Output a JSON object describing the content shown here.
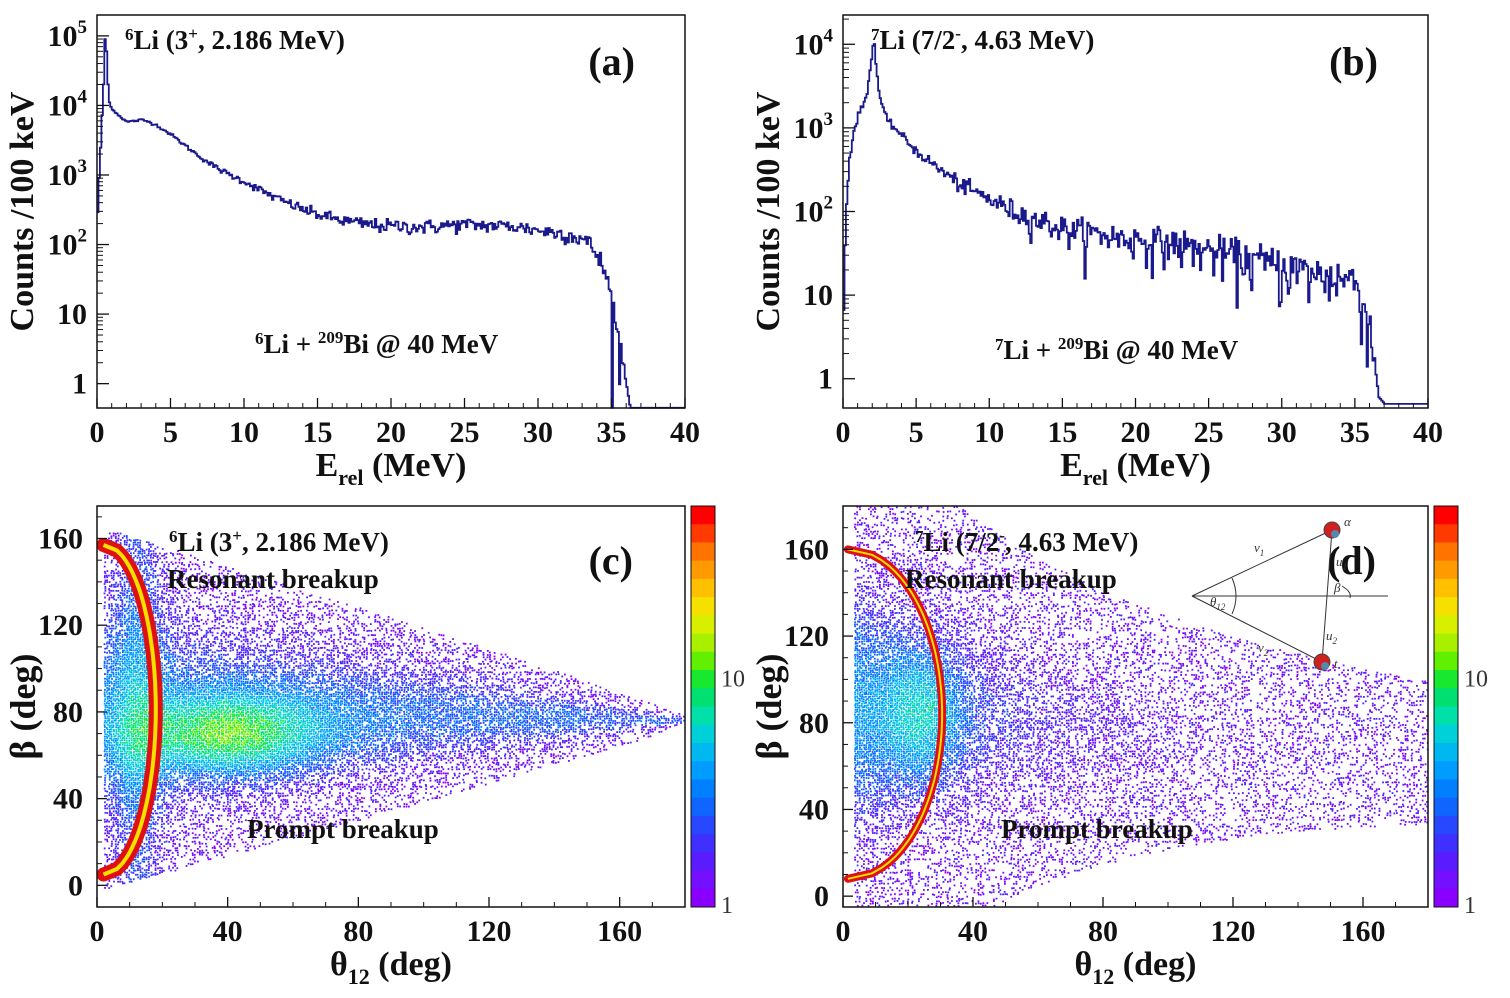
{
  "colors": {
    "histogram": "#1a1a8c",
    "axis": "#111111",
    "curve_outer": "#e01010",
    "curve_inner": "#f5e000",
    "palette": [
      "#ff0000",
      "#ff3a00",
      "#ff7400",
      "#ff9a00",
      "#ffc000",
      "#f5e000",
      "#d8f000",
      "#a8f000",
      "#60f000",
      "#18e830",
      "#00e070",
      "#00e0a8",
      "#00d0d8",
      "#00b8f0",
      "#009cff",
      "#0080ff",
      "#1064ff",
      "#2848ff",
      "#4030ff",
      "#5a1cff",
      "#7410ff",
      "#8a00ff"
    ]
  },
  "chart_data": [
    {
      "id": "a",
      "type": "histogram",
      "panel_label": "(a)",
      "title_pre": "6",
      "title_main": "Li (3",
      "title_sup": "+",
      "title_post": ", 2.186 MeV)",
      "reaction_sup1": "6",
      "reaction_mid": "Li + ",
      "reaction_sup2": "209",
      "reaction_post": "Bi @ 40 MeV",
      "xlabel_main": "E",
      "xlabel_sub": "rel",
      "xlabel_post": " (MeV)",
      "ylabel": "Counts /100 keV",
      "xlim": [
        0,
        40
      ],
      "ylim_log10": [
        -0.35,
        5.3
      ],
      "xticks": [
        0,
        5,
        10,
        15,
        20,
        25,
        30,
        35,
        40
      ],
      "yticks": [
        {
          "value": 1,
          "base": "1",
          "exp": ""
        },
        {
          "value": 10,
          "base": "10",
          "exp": ""
        },
        {
          "value": 100,
          "base": "10",
          "exp": "2"
        },
        {
          "value": 1000,
          "base": "10",
          "exp": "3"
        },
        {
          "value": 10000,
          "base": "10",
          "exp": "4"
        },
        {
          "value": 100000,
          "base": "10",
          "exp": "5"
        }
      ],
      "x": [
        0.0,
        0.2,
        0.4,
        0.5,
        0.6,
        0.7,
        0.8,
        0.9,
        1.0,
        1.2,
        1.5,
        2.0,
        2.5,
        3.0,
        3.5,
        4.0,
        5.0,
        6.0,
        7.0,
        8.0,
        9.0,
        10,
        11,
        12,
        13,
        14,
        15,
        16,
        17,
        18,
        19,
        20,
        21,
        22,
        23,
        24,
        25,
        26,
        27,
        28,
        29,
        30,
        31,
        32,
        33,
        33.5,
        34,
        34.5,
        35,
        35.3,
        35.6,
        35.9,
        36.2,
        36.4
      ],
      "y": [
        300,
        2500,
        20000,
        90000,
        60000,
        20000,
        11000,
        9500,
        9000,
        8000,
        7000,
        5800,
        6000,
        6200,
        5800,
        5200,
        3800,
        2600,
        1800,
        1300,
        1000,
        800,
        620,
        480,
        390,
        320,
        270,
        240,
        215,
        200,
        190,
        185,
        182,
        180,
        183,
        190,
        195,
        190,
        188,
        185,
        175,
        160,
        150,
        140,
        120,
        100,
        70,
        40,
        15,
        5,
        3,
        1.2,
        0.5,
        0.4
      ]
    },
    {
      "id": "b",
      "type": "histogram",
      "panel_label": "(b)",
      "title_pre": "7",
      "title_main": "Li (7/2",
      "title_sup": "-",
      "title_post": ", 4.63 MeV)",
      "reaction_sup1": "7",
      "reaction_mid": "Li + ",
      "reaction_sup2": "209",
      "reaction_post": "Bi @ 40 MeV",
      "xlabel_main": "E",
      "xlabel_sub": "rel",
      "xlabel_post": " (MeV)",
      "ylabel": "Counts /100 keV",
      "xlim": [
        0,
        40
      ],
      "ylim_log10": [
        -0.35,
        4.35
      ],
      "xticks": [
        0,
        5,
        10,
        15,
        20,
        25,
        30,
        35,
        40
      ],
      "yticks": [
        {
          "value": 1,
          "base": "1",
          "exp": ""
        },
        {
          "value": 10,
          "base": "10",
          "exp": ""
        },
        {
          "value": 100,
          "base": "10",
          "exp": "2"
        },
        {
          "value": 1000,
          "base": "10",
          "exp": "3"
        },
        {
          "value": 10000,
          "base": "10",
          "exp": "4"
        }
      ],
      "x": [
        0.0,
        0.2,
        0.4,
        0.6,
        0.8,
        1.0,
        1.2,
        1.4,
        1.6,
        1.8,
        2.0,
        2.1,
        2.2,
        2.4,
        2.6,
        2.8,
        3.0,
        3.5,
        4.0,
        5.0,
        6.0,
        7.0,
        8.0,
        9.0,
        10,
        11,
        12,
        13,
        14,
        15,
        16,
        17,
        18,
        19,
        20,
        21,
        22,
        23,
        24,
        25,
        26,
        27,
        28,
        29,
        30,
        31,
        32,
        33,
        34,
        35,
        35.5,
        36,
        36.3,
        36.6,
        37,
        38,
        39,
        40
      ],
      "y": [
        8,
        150,
        450,
        700,
        1100,
        1400,
        1700,
        2000,
        2600,
        5000,
        9500,
        10000,
        6000,
        2800,
        1900,
        1500,
        1200,
        1000,
        800,
        520,
        380,
        280,
        210,
        170,
        140,
        115,
        95,
        82,
        72,
        62,
        58,
        55,
        52,
        48,
        46,
        44,
        42,
        40,
        36,
        34,
        31,
        29,
        26,
        24,
        22,
        20,
        18,
        17,
        16,
        15,
        8,
        4,
        1.5,
        0.6,
        0.5,
        0.5,
        0.5,
        0.5
      ]
    },
    {
      "id": "c",
      "type": "scatter-heatmap",
      "panel_label": "(c)",
      "title_pre": "6",
      "title_main": "Li (3",
      "title_sup": "+",
      "title_post": ", 2.186 MeV)",
      "upper_label": "Resonant breakup",
      "lower_label": "Prompt breakup",
      "xlabel_main": "θ",
      "xlabel_sub": "12",
      "xlabel_post": " (deg)",
      "ylabel": "β (deg)",
      "xlim": [
        0,
        180
      ],
      "ylim": [
        -10,
        175
      ],
      "xticks": [
        0,
        40,
        80,
        120,
        160
      ],
      "yticks": [
        0,
        40,
        80,
        120,
        160
      ],
      "colorbar_labels": [
        "10",
        "1"
      ],
      "resonance_theta_max": 16,
      "resonance_beta": [
        5,
        157
      ]
    },
    {
      "id": "d",
      "type": "scatter-heatmap",
      "panel_label": "(d)",
      "title_pre": "7",
      "title_main": "Li (7/2",
      "title_sup": "-",
      "title_post": ", 4.63 MeV)",
      "upper_label": "Resonant breakup",
      "lower_label": "Prompt breakup",
      "xlabel_main": "θ",
      "xlabel_sub": "12",
      "xlabel_post": " (deg)",
      "ylabel": "β (deg)",
      "xlim": [
        0,
        180
      ],
      "ylim": [
        -5,
        180
      ],
      "xticks": [
        0,
        40,
        80,
        120,
        160
      ],
      "yticks": [
        0,
        40,
        80,
        120,
        160
      ],
      "colorbar_labels": [
        "10",
        "1"
      ],
      "resonance_theta_max": 29,
      "resonance_beta": [
        8,
        160
      ],
      "inset_labels": {
        "v1": "v",
        "v1_sub": "1",
        "v2": "v",
        "v2_sub": "2",
        "u1": "u",
        "u1_sub": "1",
        "u2": "u",
        "u2_sub": "2",
        "theta": "θ",
        "theta_sub": "12",
        "beta": "β",
        "alpha": "α",
        "t": "t"
      }
    }
  ]
}
